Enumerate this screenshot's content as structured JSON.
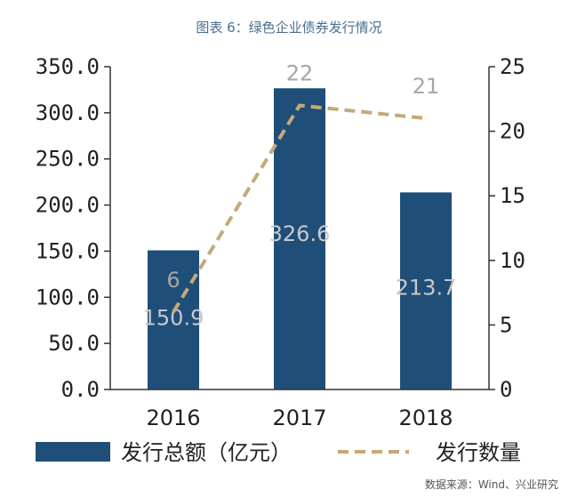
{
  "chart_data": {
    "type": "bar+line",
    "title": "图表 6：绿色企业债券发行情况",
    "categories": [
      "2016",
      "2017",
      "2018"
    ],
    "series": [
      {
        "name": "发行总额（亿元）",
        "type": "bar",
        "axis": "left",
        "values": [
          150.9,
          326.6,
          213.7
        ],
        "value_labels": [
          "150.9",
          "326.6",
          "213.7"
        ],
        "color": "#1f4e79"
      },
      {
        "name": "发行数量",
        "type": "line",
        "style": "dashed",
        "axis": "right",
        "values": [
          6,
          22,
          21
        ],
        "value_labels": [
          "6",
          "22",
          "21"
        ],
        "color": "#c4a97a"
      }
    ],
    "y_left": {
      "lim": [
        0,
        350
      ],
      "ticks": [
        0,
        50,
        100,
        150,
        200,
        250,
        300,
        350
      ],
      "tick_labels": [
        "0.0",
        "50.0",
        "100.0",
        "150.0",
        "200.0",
        "250.0",
        "300.0",
        "350.0"
      ]
    },
    "y_right": {
      "lim": [
        0,
        25
      ],
      "ticks": [
        0,
        5,
        10,
        15,
        20,
        25
      ],
      "tick_labels": [
        "0",
        "5",
        "10",
        "15",
        "20",
        "25"
      ]
    },
    "grid": false,
    "legend_position": "bottom"
  },
  "source": "数据来源：Wind、兴业研究"
}
